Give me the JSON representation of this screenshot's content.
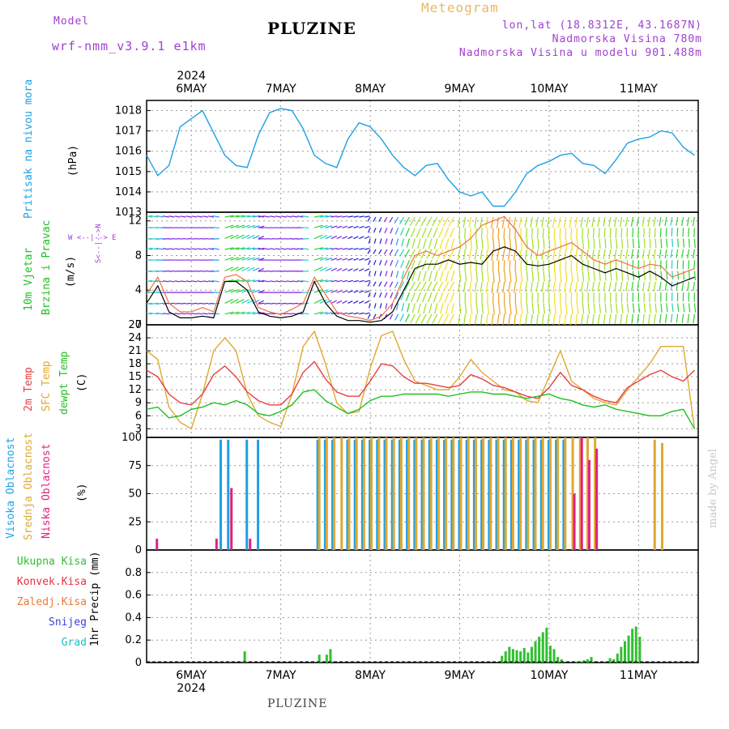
{
  "header": {
    "model_label": "Model",
    "model_name": "wrf-nmm_v3.9.1  e1km",
    "title": "PLUZINE",
    "meteogram_label": "Meteogram",
    "lonlat": "lon,lat (18.8312E, 43.1687N)",
    "altitude": "Nadmorska Visina 780m",
    "model_altitude": "Nadmorska Visina u modelu 901.488m"
  },
  "footer": {
    "station": "PLUZINE",
    "watermark": "made by Angel"
  },
  "x_axis": {
    "year": "2024",
    "day_labels": [
      "6MAY",
      "7MAY",
      "8MAY",
      "9MAY",
      "10MAY",
      "11MAY"
    ]
  },
  "panels": {
    "pressure": {
      "ylabel": "Pritisak na nivou mora",
      "unit": "(hPa)"
    },
    "wind": {
      "ylabel_1": "10m Vjetar",
      "ylabel_2": "Brzina i Pravac",
      "unit": "(m/s)",
      "compass": "W  <--|--> E",
      "compass_ns": "S<--|-->N"
    },
    "temperature": {
      "label_2m": "2m Temp",
      "label_sfc": "SFC Temp",
      "label_dewpt": "dewpt Temp",
      "unit": "(C)"
    },
    "cloud": {
      "label_high": "Visoka Oblacnost",
      "label_mid": "Srednja Oblacnost",
      "label_low": "Niska Oblacnost",
      "unit": "(%)"
    },
    "precip": {
      "legend": [
        "Ukupna Kisa",
        "Konvek.Kisa",
        "Zaledj.Kisa",
        "Snijeg",
        "Grad"
      ],
      "unit": "1hr Precip (mm)"
    }
  },
  "colors": {
    "pressure": "#1ea0e6",
    "temp2m": "#e84040",
    "sfc": "#e0a830",
    "dewpt": "#20c020",
    "high": "#1ea0e6",
    "mid": "#e0a830",
    "low": "#e02080",
    "total": "#30c030",
    "convective": "#e83040",
    "freezing": "#f07830",
    "snow": "#4040e0",
    "hail": "#20c0c0"
  },
  "chart_data": [
    {
      "type": "line",
      "title": "Pritisak na nivou mora",
      "ylabel": "(hPa)",
      "ylim": [
        1013,
        1018.5
      ],
      "yticks": [
        1013,
        1014,
        1015,
        1016,
        1017,
        1018
      ],
      "x_hours": [
        0,
        3,
        6,
        9,
        12,
        15,
        18,
        21,
        24,
        27,
        30,
        33,
        36,
        39,
        42,
        45,
        48,
        51,
        54,
        57,
        60,
        63,
        66,
        69,
        72,
        75,
        78,
        81,
        84,
        87,
        90,
        93,
        96,
        99,
        102,
        105,
        108,
        111,
        114,
        117,
        120,
        123,
        126,
        129,
        132,
        135,
        138,
        141,
        144,
        147
      ],
      "series": [
        {
          "values": [
            1015.8,
            1014.8,
            1015.3,
            1017.2,
            1017.6,
            1018.0,
            1016.9,
            1015.8,
            1015.3,
            1015.2,
            1016.8,
            1017.9,
            1018.1,
            1018.0,
            1017.1,
            1015.8,
            1015.4,
            1015.2,
            1016.6,
            1017.4,
            1017.2,
            1016.6,
            1015.8,
            1015.2,
            1014.8,
            1015.3,
            1015.4,
            1014.6,
            1014.0,
            1013.8,
            1014.0,
            1013.3,
            1013.3,
            1014.0,
            1014.9,
            1015.3,
            1015.5,
            1015.8,
            1015.9,
            1015.4,
            1015.3,
            1014.9,
            1015.6,
            1016.4,
            1016.6,
            1016.7,
            1017.0,
            1016.9,
            1016.2,
            1015.8
          ]
        }
      ]
    },
    {
      "type": "line",
      "title": "10m Vjetar Brzina i Pravac",
      "ylabel": "(m/s)",
      "ylim": [
        0,
        13
      ],
      "yticks": [
        0,
        4,
        8,
        12
      ],
      "x_hours": [
        0,
        3,
        6,
        9,
        12,
        15,
        18,
        21,
        24,
        27,
        30,
        33,
        36,
        39,
        42,
        45,
        48,
        51,
        54,
        57,
        60,
        63,
        66,
        69,
        72,
        75,
        78,
        81,
        84,
        87,
        90,
        93,
        96,
        99,
        102,
        105,
        108,
        111,
        114,
        117,
        120,
        123,
        126,
        129,
        132,
        135,
        138,
        141,
        144,
        147
      ],
      "series": [
        {
          "values": [
            2.5,
            4.5,
            1.5,
            0.8,
            0.8,
            1.0,
            0.8,
            5.0,
            5.0,
            4.0,
            1.5,
            1.0,
            0.8,
            1.0,
            1.5,
            5.0,
            2.5,
            1.0,
            0.5,
            0.5,
            0.3,
            0.5,
            1.5,
            4.0,
            6.5,
            7.0,
            7.0,
            7.5,
            7.0,
            7.2,
            7.0,
            8.5,
            9.0,
            8.5,
            7.0,
            6.8,
            7.0,
            7.5,
            8.0,
            7.0,
            6.5,
            6.0,
            6.5,
            6.0,
            5.5,
            6.2,
            5.5,
            4.5,
            5.0,
            5.5
          ]
        },
        {
          "values": [
            3.5,
            5.5,
            2.5,
            1.5,
            1.5,
            2.0,
            1.5,
            5.5,
            5.8,
            5.0,
            2.0,
            1.5,
            1.2,
            1.8,
            2.5,
            5.5,
            3.5,
            1.5,
            1.0,
            0.8,
            0.5,
            1.0,
            2.5,
            5.5,
            8.0,
            8.5,
            8.0,
            8.5,
            9.0,
            10.0,
            11.5,
            12.0,
            12.5,
            11.0,
            9.0,
            8.0,
            8.5,
            9.0,
            9.5,
            8.5,
            7.5,
            7.0,
            7.5,
            7.0,
            6.5,
            7.0,
            6.8,
            5.5,
            6.0,
            6.5
          ]
        }
      ]
    },
    {
      "type": "line",
      "title": "2m Temp / SFC Temp / dewpt Temp",
      "ylabel": "(C)",
      "ylim": [
        1,
        27
      ],
      "yticks": [
        3,
        6,
        9,
        12,
        15,
        18,
        21,
        24,
        27
      ],
      "x_hours": [
        0,
        3,
        6,
        9,
        12,
        15,
        18,
        21,
        24,
        27,
        30,
        33,
        36,
        39,
        42,
        45,
        48,
        51,
        54,
        57,
        60,
        63,
        66,
        69,
        72,
        75,
        78,
        81,
        84,
        87,
        90,
        93,
        96,
        99,
        102,
        105,
        108,
        111,
        114,
        117,
        120,
        123,
        126,
        129,
        132,
        135,
        138,
        141,
        144,
        147
      ],
      "series": [
        {
          "name": "2m Temp",
          "values": [
            16.5,
            15.0,
            11.0,
            9.0,
            8.5,
            11.0,
            15.5,
            17.5,
            15.0,
            11.5,
            9.5,
            8.5,
            8.5,
            11.0,
            16.0,
            18.5,
            14.5,
            11.5,
            10.5,
            10.5,
            14.0,
            18.0,
            17.5,
            15.0,
            13.5,
            13.5,
            13.0,
            12.5,
            13.0,
            15.5,
            14.5,
            13.0,
            12.5,
            11.5,
            10.5,
            10.0,
            12.5,
            16.0,
            13.0,
            12.0,
            10.5,
            9.5,
            9.0,
            12.5,
            14.0,
            15.5,
            16.5,
            15.0,
            14.0,
            16.5
          ]
        },
        {
          "name": "SFC Temp",
          "values": [
            21.0,
            19.0,
            8.0,
            4.5,
            3.0,
            11.0,
            21.0,
            24.0,
            21.0,
            11.0,
            6.0,
            4.5,
            3.5,
            11.0,
            22.0,
            25.5,
            18.0,
            9.0,
            6.5,
            7.0,
            17.0,
            24.5,
            25.5,
            19.0,
            14.0,
            13.0,
            12.0,
            12.0,
            15.0,
            19.0,
            16.0,
            14.0,
            12.0,
            11.5,
            9.5,
            9.0,
            15.0,
            21.0,
            14.0,
            12.0,
            10.0,
            9.0,
            8.5,
            12.0,
            15.0,
            18.0,
            22.0,
            22.0,
            22.0,
            3.0
          ]
        },
        {
          "name": "dewpt Temp",
          "values": [
            7.5,
            8.0,
            5.5,
            6.0,
            7.5,
            8.0,
            9.0,
            8.5,
            9.5,
            8.5,
            6.5,
            6.0,
            7.0,
            8.5,
            11.5,
            12.0,
            9.5,
            8.0,
            6.5,
            7.5,
            9.5,
            10.5,
            10.5,
            11.0,
            11.0,
            11.0,
            11.0,
            10.5,
            11.0,
            11.5,
            11.5,
            11.0,
            11.0,
            10.5,
            10.0,
            10.5,
            11.0,
            10.0,
            9.5,
            8.5,
            8.0,
            8.5,
            7.5,
            7.0,
            6.5,
            6.0,
            6.0,
            7.0,
            7.5,
            3.0
          ]
        }
      ]
    },
    {
      "type": "bar",
      "title": "Visoka / Srednja / Niska Oblacnost",
      "ylabel": "(%)",
      "ylim": [
        0,
        100
      ],
      "yticks": [
        0,
        25,
        50,
        75,
        100
      ],
      "x_hours": [
        2,
        18,
        20,
        22,
        25,
        27,
        30,
        46,
        48,
        50,
        52,
        54,
        56,
        58,
        60,
        62,
        64,
        66,
        68,
        70,
        72,
        74,
        76,
        78,
        80,
        82,
        84,
        86,
        88,
        90,
        92,
        94,
        96,
        98,
        100,
        102,
        104,
        106,
        108,
        110,
        112,
        114,
        116,
        118,
        120,
        136,
        138
      ],
      "series": [
        {
          "name": "Visoka Oblacnost",
          "values": [
            0,
            0,
            98,
            98,
            0,
            98,
            98,
            98,
            98,
            98,
            0,
            98,
            98,
            98,
            98,
            98,
            98,
            98,
            98,
            98,
            98,
            98,
            98,
            98,
            98,
            98,
            98,
            98,
            98,
            98,
            98,
            98,
            98,
            98,
            98,
            98,
            98,
            98,
            98,
            98,
            98,
            0,
            0,
            0,
            0,
            0,
            0
          ]
        },
        {
          "name": "Srednja Oblacnost",
          "values": [
            0,
            0,
            0,
            0,
            0,
            0,
            0,
            100,
            100,
            100,
            100,
            100,
            100,
            100,
            100,
            100,
            100,
            100,
            100,
            100,
            100,
            100,
            100,
            100,
            100,
            100,
            100,
            100,
            100,
            100,
            100,
            100,
            100,
            100,
            100,
            100,
            100,
            100,
            100,
            100,
            100,
            100,
            100,
            100,
            100,
            98,
            95
          ]
        },
        {
          "name": "Niska Oblacnost",
          "values": [
            10,
            10,
            0,
            55,
            0,
            10,
            0,
            0,
            0,
            0,
            0,
            0,
            0,
            0,
            0,
            0,
            0,
            0,
            0,
            0,
            0,
            0,
            0,
            0,
            0,
            0,
            0,
            0,
            0,
            0,
            0,
            0,
            0,
            0,
            0,
            0,
            0,
            0,
            0,
            0,
            0,
            50,
            100,
            80,
            90,
            0,
            0
          ]
        }
      ]
    },
    {
      "type": "bar",
      "title": "1hr Precip",
      "ylabel": "1hr Precip (mm)",
      "ylim": [
        0,
        1.0
      ],
      "yticks": [
        0,
        0.2,
        0.4,
        0.6,
        0.8
      ],
      "x_hours": [
        26,
        46,
        48,
        49,
        50,
        95,
        96,
        97,
        98,
        99,
        100,
        101,
        102,
        103,
        104,
        105,
        106,
        107,
        108,
        109,
        110,
        111,
        112,
        113,
        114,
        115,
        116,
        117,
        118,
        119,
        124,
        125,
        126,
        127,
        128,
        129,
        130,
        131,
        132,
        133,
        134
      ],
      "series": [
        {
          "name": "Ukupna Kisa",
          "values": [
            0.1,
            0.07,
            0.07,
            0.12,
            0.0,
            0.06,
            0.1,
            0.14,
            0.12,
            0.11,
            0.1,
            0.13,
            0.09,
            0.14,
            0.19,
            0.23,
            0.27,
            0.31,
            0.15,
            0.12,
            0.05,
            0.03,
            0.0,
            0.0,
            0.0,
            0.01,
            0.01,
            0.02,
            0.03,
            0.05,
            0.04,
            0.03,
            0.08,
            0.14,
            0.19,
            0.24,
            0.3,
            0.32,
            0.23,
            0.0,
            0.0
          ]
        }
      ]
    }
  ]
}
